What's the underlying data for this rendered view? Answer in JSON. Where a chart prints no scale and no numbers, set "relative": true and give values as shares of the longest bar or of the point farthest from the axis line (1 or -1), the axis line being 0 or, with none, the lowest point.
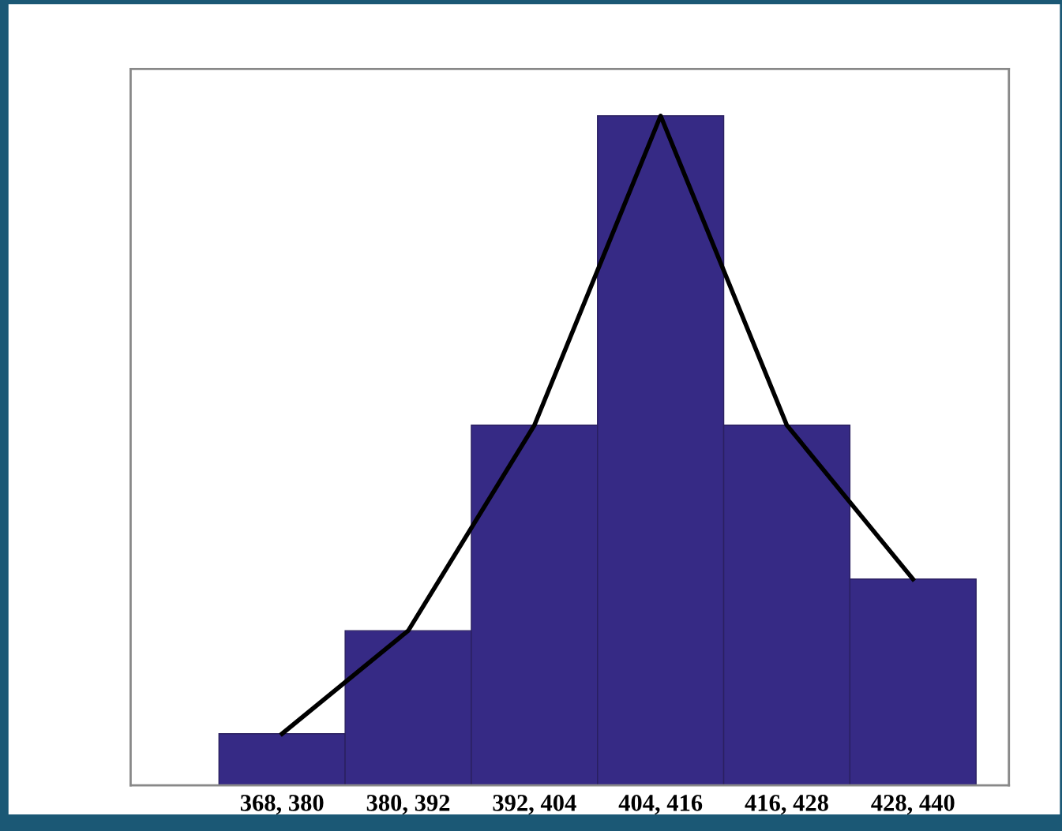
{
  "chart_data": {
    "type": "bar",
    "relative": true,
    "categories": [
      "368, 380",
      "380, 392",
      "392, 404",
      "404, 416",
      "416, 428",
      "428, 440"
    ],
    "series": [
      {
        "color": "#362a85",
        "values": [
          0.077,
          0.231,
          0.538,
          1,
          0.538,
          0.308
        ]
      },
      {
        "type": "line",
        "color": "#000000",
        "values": [
          0.077,
          0.231,
          0.538,
          1,
          0.538,
          0.308
        ]
      }
    ],
    "grid": false,
    "legend": false,
    "line_style": "solid",
    "marker": "none"
  }
}
